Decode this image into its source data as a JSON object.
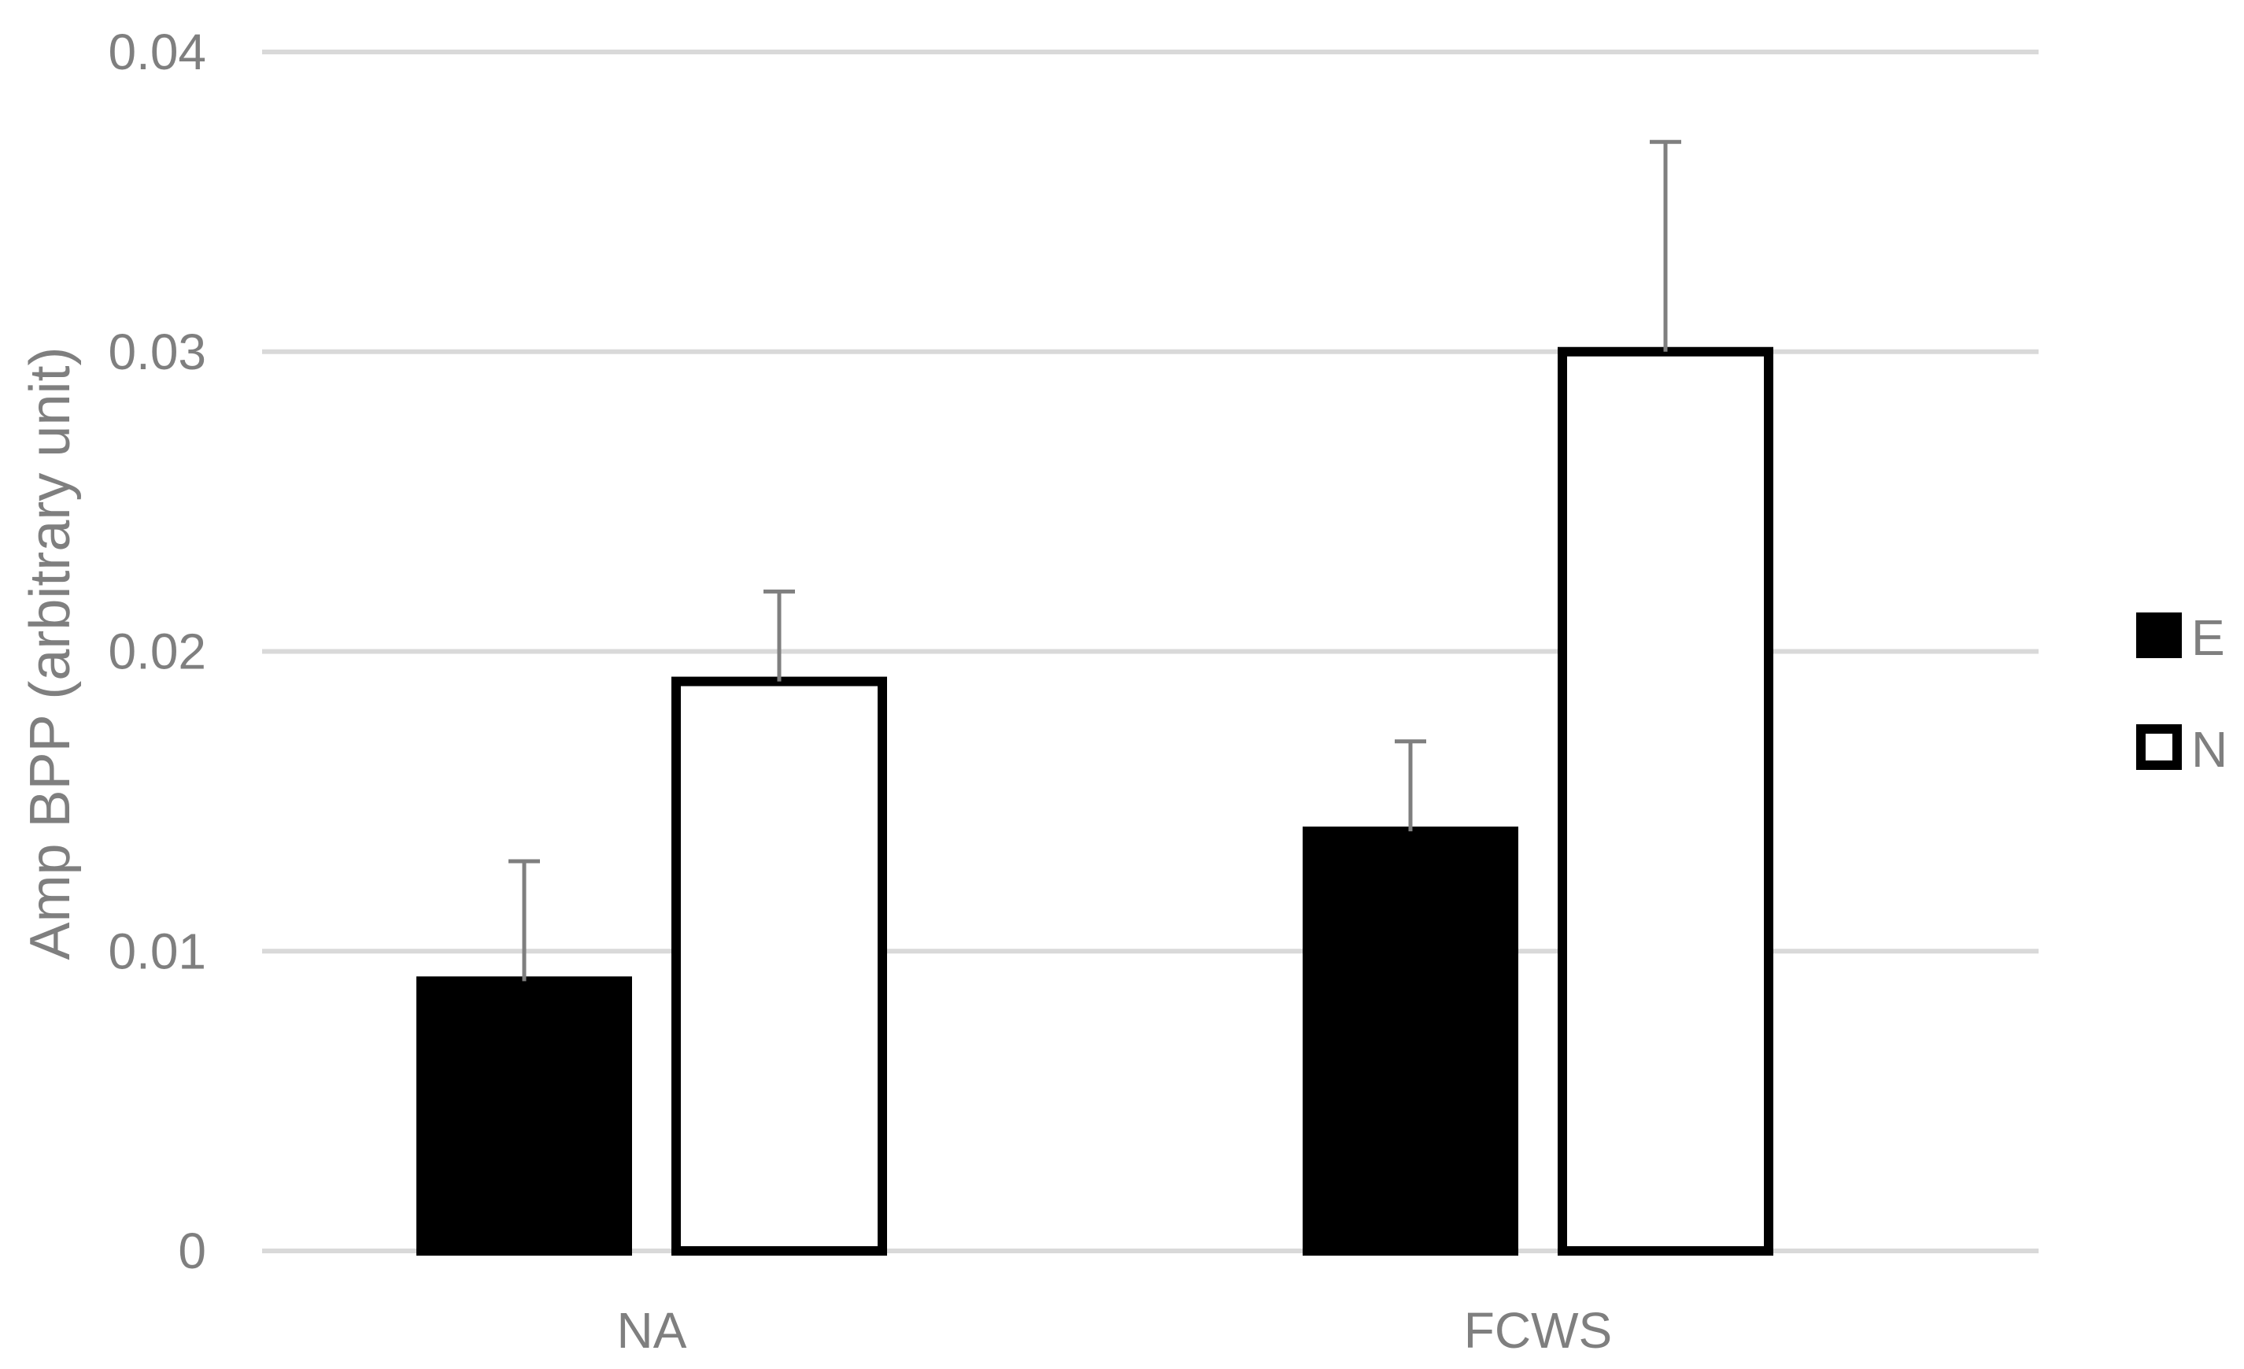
{
  "chart_data": {
    "type": "bar",
    "title": "",
    "xlabel": "",
    "ylabel": "Amp BPP  (arbitrary unit)",
    "categories": [
      "NA",
      "FCWS"
    ],
    "series": [
      {
        "name": "E",
        "values": [
          0.009,
          0.014
        ],
        "errors": [
          0.004,
          0.003
        ],
        "fill": "#000000",
        "stroke": "#000000"
      },
      {
        "name": "N",
        "values": [
          0.019,
          0.03
        ],
        "errors": [
          0.003,
          0.007
        ],
        "fill": "#ffffff",
        "stroke": "#000000"
      }
    ],
    "ylim": [
      0,
      0.04
    ],
    "yticks": [
      "0",
      "0.01",
      "0.02",
      "0.03",
      "0.04"
    ],
    "grid": true,
    "legend_position": "right",
    "colors": {
      "grid": "#d9d9d9",
      "text": "#7f7f7f",
      "error_bar": "#7f7f7f"
    }
  }
}
